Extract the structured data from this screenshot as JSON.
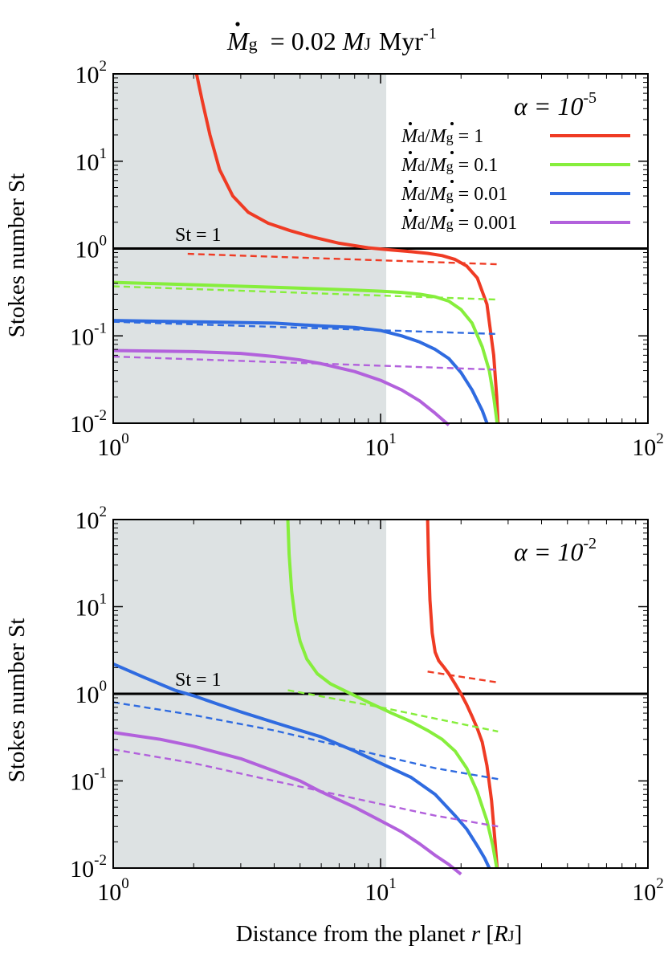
{
  "title": {
    "lhs_symbol": "M",
    "lhs_sub": "g",
    "rhs": "= 0.02",
    "unit_symbol": "M",
    "unit_sub": "J",
    "unit_tail": "Myr",
    "unit_exp": "-1"
  },
  "xlabel": {
    "prefix": "Distance from the planet ",
    "var": "r",
    "bracket_open": " [",
    "unit": "R",
    "unit_sub": "J",
    "bracket_close": "]"
  },
  "ylabel": "Stokes number St",
  "reference_line_label": "St = 1",
  "colors": {
    "red": "#ef3b24",
    "green": "#86ee3c",
    "blue": "#2f6be0",
    "purple": "#b261dc",
    "shade": "#dde2e3",
    "axis": "#000000"
  },
  "legend": {
    "entries": [
      {
        "num": "M",
        "num_sub": "d",
        "den": "M",
        "den_sub": "g",
        "value": "= 1",
        "color": "red"
      },
      {
        "num": "M",
        "num_sub": "d",
        "den": "M",
        "den_sub": "g",
        "value": "= 0.1",
        "color": "green"
      },
      {
        "num": "M",
        "num_sub": "d",
        "den": "M",
        "den_sub": "g",
        "value": "= 0.01",
        "color": "blue"
      },
      {
        "num": "M",
        "num_sub": "d",
        "den": "M",
        "den_sub": "g",
        "value": "= 0.001",
        "color": "purple"
      }
    ]
  },
  "chart_data": [
    {
      "type": "line",
      "panel": "top",
      "alpha_label": "α = 10",
      "alpha_exp": "-5",
      "xscale": "log",
      "yscale": "log",
      "xlim": [
        1,
        100
      ],
      "ylim": [
        0.01,
        100
      ],
      "xticks": [
        {
          "base": "10",
          "exp": "0",
          "value": 1
        },
        {
          "base": "10",
          "exp": "1",
          "value": 10
        },
        {
          "base": "10",
          "exp": "2",
          "value": 100
        }
      ],
      "yticks": [
        {
          "base": "10",
          "exp": "-2",
          "value": 0.01
        },
        {
          "base": "10",
          "exp": "-1",
          "value": 0.1
        },
        {
          "base": "10",
          "exp": "0",
          "value": 1
        },
        {
          "base": "10",
          "exp": "1",
          "value": 10
        },
        {
          "base": "10",
          "exp": "2",
          "value": 100
        }
      ],
      "shaded_x_range": [
        1,
        10.5
      ],
      "reference_y": 1,
      "series": [
        {
          "name": "Md/Mg = 1",
          "color": "red",
          "style": "solid",
          "x": [
            2.05,
            2.15,
            2.3,
            2.5,
            2.8,
            3.2,
            3.8,
            4.6,
            5.6,
            7,
            9,
            11,
            13,
            15,
            17,
            19,
            21,
            23,
            25,
            26.5,
            27.2,
            27.5
          ],
          "y": [
            100,
            50,
            20,
            8,
            4,
            2.6,
            1.95,
            1.6,
            1.35,
            1.15,
            1.02,
            0.96,
            0.92,
            0.88,
            0.83,
            0.75,
            0.63,
            0.46,
            0.23,
            0.06,
            0.02,
            0.01
          ]
        },
        {
          "name": "Md/Mg = 1 (analytic)",
          "color": "red",
          "style": "dashed",
          "x": [
            1.9,
            27.5
          ],
          "y": [
            0.87,
            0.66
          ]
        },
        {
          "name": "Md/Mg = 0.1",
          "color": "green",
          "style": "solid",
          "x": [
            1,
            2,
            4,
            6,
            8,
            10,
            12,
            14,
            16,
            18,
            20,
            22,
            24,
            25.5,
            26.5,
            27.3
          ],
          "y": [
            0.41,
            0.385,
            0.36,
            0.345,
            0.335,
            0.325,
            0.315,
            0.3,
            0.28,
            0.25,
            0.2,
            0.14,
            0.075,
            0.04,
            0.02,
            0.01
          ]
        },
        {
          "name": "Md/Mg = 0.1 (analytic)",
          "color": "green",
          "style": "dashed",
          "x": [
            1,
            27.5
          ],
          "y": [
            0.37,
            0.26
          ]
        },
        {
          "name": "Md/Mg = 0.01",
          "color": "blue",
          "style": "solid",
          "x": [
            1,
            2,
            4,
            6,
            8,
            10,
            12,
            14,
            16,
            18,
            20,
            22,
            24,
            25
          ],
          "y": [
            0.15,
            0.145,
            0.14,
            0.13,
            0.125,
            0.115,
            0.1,
            0.085,
            0.07,
            0.055,
            0.038,
            0.024,
            0.014,
            0.01
          ]
        },
        {
          "name": "Md/Mg = 0.01 (analytic)",
          "color": "blue",
          "style": "dashed",
          "x": [
            1,
            27.5
          ],
          "y": [
            0.145,
            0.105
          ]
        },
        {
          "name": "Md/Mg = 0.001",
          "color": "purple",
          "style": "solid",
          "x": [
            1,
            2,
            3,
            4,
            5,
            6,
            8,
            10,
            12,
            14,
            16,
            18
          ],
          "y": [
            0.068,
            0.066,
            0.063,
            0.058,
            0.053,
            0.048,
            0.039,
            0.031,
            0.024,
            0.018,
            0.013,
            0.0095
          ]
        },
        {
          "name": "Md/Mg = 0.001 (analytic)",
          "color": "purple",
          "style": "dashed",
          "x": [
            1,
            27.5
          ],
          "y": [
            0.058,
            0.041
          ]
        }
      ]
    },
    {
      "type": "line",
      "panel": "bottom",
      "alpha_label": "α = 10",
      "alpha_exp": "-2",
      "xscale": "log",
      "yscale": "log",
      "xlim": [
        1,
        100
      ],
      "ylim": [
        0.01,
        100
      ],
      "xticks": [
        {
          "base": "10",
          "exp": "0",
          "value": 1
        },
        {
          "base": "10",
          "exp": "1",
          "value": 10
        },
        {
          "base": "10",
          "exp": "2",
          "value": 100
        }
      ],
      "yticks": [
        {
          "base": "10",
          "exp": "-2",
          "value": 0.01
        },
        {
          "base": "10",
          "exp": "-1",
          "value": 0.1
        },
        {
          "base": "10",
          "exp": "0",
          "value": 1
        },
        {
          "base": "10",
          "exp": "1",
          "value": 10
        },
        {
          "base": "10",
          "exp": "2",
          "value": 100
        }
      ],
      "shaded_x_range": [
        1,
        10.5
      ],
      "reference_y": 1,
      "series": [
        {
          "name": "Md/Mg = 1",
          "color": "red",
          "style": "solid",
          "x": [
            15,
            15.1,
            15.3,
            15.6,
            16,
            16.5,
            17.2,
            18,
            19,
            20,
            21,
            22,
            23,
            24,
            25,
            26,
            26.8,
            27.3
          ],
          "y": [
            100,
            40,
            12,
            5,
            3,
            2.4,
            2.05,
            1.7,
            1.3,
            1.0,
            0.75,
            0.55,
            0.4,
            0.28,
            0.15,
            0.06,
            0.02,
            0.01
          ]
        },
        {
          "name": "Md/Mg = 1 (analytic)",
          "color": "red",
          "style": "dashed",
          "x": [
            15,
            27.5
          ],
          "y": [
            1.8,
            1.35
          ]
        },
        {
          "name": "Md/Mg = 0.1",
          "color": "green",
          "style": "solid",
          "x": [
            4.5,
            4.55,
            4.65,
            4.8,
            5.0,
            5.3,
            5.8,
            6.5,
            7.5,
            9,
            11,
            13,
            15,
            17,
            19,
            21,
            23,
            25,
            26.3,
            27.2
          ],
          "y": [
            100,
            40,
            15,
            7,
            4,
            2.5,
            1.7,
            1.3,
            1.05,
            0.8,
            0.6,
            0.48,
            0.38,
            0.3,
            0.22,
            0.14,
            0.075,
            0.035,
            0.018,
            0.01
          ]
        },
        {
          "name": "Md/Mg = 0.1 (analytic)",
          "color": "green",
          "style": "dashed",
          "x": [
            4.5,
            10,
            27.5
          ],
          "y": [
            1.1,
            0.7,
            0.37
          ]
        },
        {
          "name": "Md/Mg = 0.01",
          "color": "blue",
          "style": "solid",
          "x": [
            1,
            1.3,
            1.7,
            2,
            2.5,
            3,
            4,
            5,
            6,
            8,
            10,
            13,
            16,
            19,
            21,
            23,
            24.5,
            25.5
          ],
          "y": [
            2.2,
            1.55,
            1.1,
            0.95,
            0.75,
            0.62,
            0.47,
            0.38,
            0.32,
            0.22,
            0.16,
            0.11,
            0.07,
            0.04,
            0.028,
            0.018,
            0.013,
            0.01
          ]
        },
        {
          "name": "Md/Mg = 0.01 (analytic)",
          "color": "blue",
          "style": "dashed",
          "x": [
            1,
            2,
            4,
            8,
            16,
            27.5
          ],
          "y": [
            0.8,
            0.57,
            0.38,
            0.23,
            0.14,
            0.105
          ]
        },
        {
          "name": "Md/Mg = 0.001",
          "color": "purple",
          "style": "solid",
          "x": [
            1,
            1.5,
            2,
            3,
            4,
            5,
            6,
            8,
            10,
            12,
            14,
            16,
            18,
            20
          ],
          "y": [
            0.36,
            0.3,
            0.25,
            0.18,
            0.13,
            0.1,
            0.075,
            0.05,
            0.035,
            0.026,
            0.019,
            0.014,
            0.011,
            0.0085
          ]
        },
        {
          "name": "Md/Mg = 0.001 (analytic)",
          "color": "purple",
          "style": "dashed",
          "x": [
            1,
            2,
            4,
            8,
            16,
            27.5
          ],
          "y": [
            0.23,
            0.16,
            0.1,
            0.063,
            0.04,
            0.03
          ]
        }
      ]
    }
  ]
}
